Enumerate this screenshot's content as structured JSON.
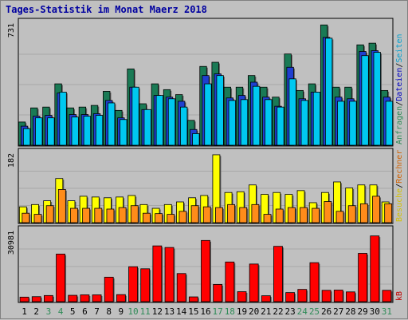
{
  "chart_data": {
    "title": "Tages-Statistik im Monat Maerz 2018",
    "type": "bar",
    "categories": [
      "1",
      "2",
      "3",
      "4",
      "5",
      "6",
      "7",
      "8",
      "9",
      "10",
      "11",
      "12",
      "13",
      "14",
      "15",
      "16",
      "17",
      "18",
      "19",
      "20",
      "21",
      "22",
      "23",
      "24",
      "25",
      "26",
      "27",
      "28",
      "29",
      "30",
      "31"
    ],
    "weekend_days": [
      "3",
      "4",
      "10",
      "11",
      "17",
      "18",
      "24",
      "25",
      "31"
    ],
    "colors": {
      "weekday": "#000000",
      "weekend": "#2e8b57"
    },
    "panels": [
      {
        "id": "hits",
        "ymax_label": "731",
        "ymax": 731,
        "right_labels": [
          {
            "text": "Anfragen",
            "color": "#2e8b57"
          },
          {
            "text": "/",
            "color": "#000000"
          },
          {
            "text": "Dateien",
            "color": "#0000c0"
          },
          {
            "text": "/",
            "color": "#000000"
          },
          {
            "text": "Seiten",
            "color": "#00a0d0"
          }
        ],
        "series": [
          {
            "name": "Anfragen",
            "color": "#1a7a55",
            "values": [
              140,
              225,
              230,
              370,
              225,
              230,
              240,
              325,
              210,
              460,
              250,
              370,
              335,
              305,
              150,
              475,
              500,
              350,
              350,
              420,
              350,
              290,
              550,
              330,
              370,
              725,
              350,
              350,
              605,
              615,
              330
            ]
          },
          {
            "name": "Dateien",
            "color": "#1f3fd0",
            "values": [
              115,
              175,
              180,
              315,
              185,
              185,
              190,
              270,
              165,
              350,
              215,
              300,
              290,
              265,
              95,
              420,
              430,
              285,
              300,
              380,
              290,
              235,
              470,
              280,
              320,
              650,
              290,
              280,
              565,
              570,
              290
            ]
          },
          {
            "name": "Seiten",
            "color": "#00c8f0",
            "values": [
              100,
              165,
              165,
              320,
              170,
              175,
              180,
              255,
              155,
              350,
              215,
              300,
              280,
              230,
              70,
              370,
              420,
              270,
              275,
              355,
              275,
              230,
              400,
              270,
              320,
              645,
              265,
              265,
              540,
              560,
              265
            ]
          }
        ]
      },
      {
        "id": "visits",
        "ymax_label": "182",
        "ymax": 182,
        "right_labels": [
          {
            "text": "Besuche",
            "color": "#d4c000"
          },
          {
            "text": "/",
            "color": "#000000"
          },
          {
            "text": "Rechner",
            "color": "#d06000"
          }
        ],
        "series": [
          {
            "name": "Besuche",
            "color": "#ffff00",
            "values": [
              42,
              48,
              58,
              117,
              58,
              70,
              68,
              66,
              68,
              72,
              48,
              38,
              48,
              55,
              66,
              72,
              180,
              80,
              82,
              100,
              75,
              80,
              75,
              85,
              53,
              80,
              108,
              92,
              100,
              100,
              55
            ]
          },
          {
            "name": "Rechner",
            "color": "#ff8c1a",
            "values": [
              25,
              22,
              45,
              88,
              38,
              38,
              38,
              36,
              40,
              45,
              25,
              24,
              22,
              30,
              45,
              42,
              40,
              48,
              40,
              48,
              22,
              36,
              40,
              40,
              38,
              56,
              30,
              45,
              50,
              70,
              50
            ]
          }
        ]
      },
      {
        "id": "kb",
        "ymax_label": "30981",
        "ymax": 30981,
        "right_labels": [
          {
            "text": "kB",
            "color": "#c00000"
          }
        ],
        "series": [
          {
            "name": "kB",
            "color": "#ff0000",
            "values": [
              2000,
              2200,
              2700,
              21000,
              2800,
              3000,
              3000,
              10800,
              3100,
              15400,
              14500,
              24600,
              23900,
              12400,
              2100,
              27000,
              7600,
              17500,
              4400,
              16600,
              2600,
              24400,
              4000,
              5400,
              17200,
              5000,
              5100,
              4300,
              21300,
              29000,
              5000
            ]
          }
        ]
      }
    ]
  }
}
